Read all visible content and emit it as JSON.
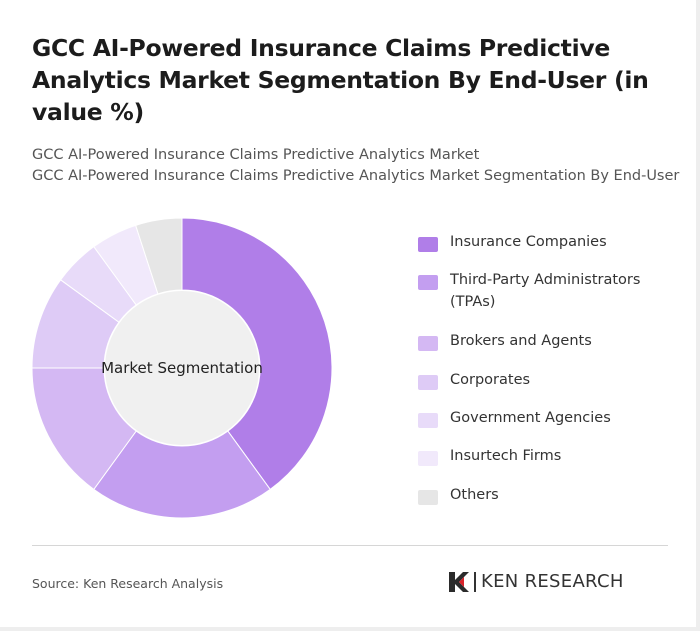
{
  "title": "GCC AI-Powered Insurance Claims Predictive Analytics Market Segmentation By End-User (in value %)",
  "subtitle_line1": "GCC AI-Powered Insurance Claims Predictive Analytics Market",
  "subtitle_line2": "GCC AI-Powered Insurance Claims Predictive Analytics Market Segmentation By End-User",
  "center_label": "Market Segmentation",
  "source": "Source: Ken Research Analysis",
  "brand": {
    "name": "KEN RESEARCH",
    "logo_letter": "K"
  },
  "chart_data": {
    "type": "pie",
    "variant": "donut",
    "categories": [
      "Insurance Companies",
      "Third-Party Administrators (TPAs)",
      "Brokers and Agents",
      "Corporates",
      "Government Agencies",
      "Insurtech Firms",
      "Others"
    ],
    "values": [
      40,
      20,
      15,
      10,
      5,
      5,
      5
    ],
    "colors": [
      "#b07ee8",
      "#c39ef0",
      "#d4b8f3",
      "#decbf6",
      "#e8dbf9",
      "#f1e9fb",
      "#e6e6e6"
    ],
    "legend_position": "right"
  }
}
